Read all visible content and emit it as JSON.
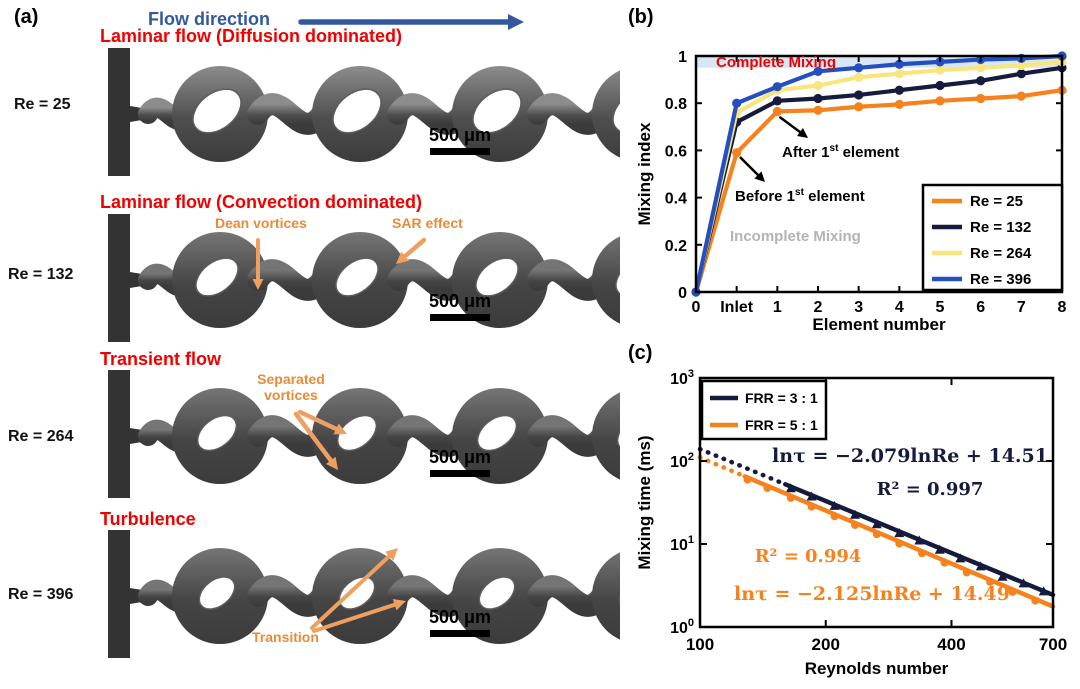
{
  "colors": {
    "red_title": "#f20000",
    "blue_flow": "#33589e",
    "orange_annot": "#ea8a38",
    "arrow_orange": "#eda05f",
    "series_orange": "#f6821e",
    "series_navy": "#141b3c",
    "series_yellow": "#f9e57e",
    "series_blue": "#2350be",
    "band_blue": "#d9e7f5",
    "gray_text": "#b3b3b3",
    "black": "#000000"
  },
  "figure": {
    "panel_a": {
      "label": "(a)",
      "flow_direction": "Flow direction",
      "scale_bar": "500 μm",
      "rows": [
        {
          "re": "Re = 25",
          "title": "Laminar flow (Diffusion dominated)",
          "annotations": []
        },
        {
          "re": "Re = 132",
          "title": "Laminar flow (Convection dominated)",
          "annotations": [
            {
              "text": "Dean vortices"
            },
            {
              "text": "SAR effect"
            }
          ]
        },
        {
          "re": "Re = 264",
          "title": "Transient flow",
          "annotations": [
            {
              "text": "Separated vortices"
            }
          ]
        },
        {
          "re": "Re = 396",
          "title": "Turbulence",
          "annotations": [
            {
              "text": "Transition"
            }
          ]
        }
      ]
    },
    "panel_b": {
      "label": "(b)"
    },
    "panel_c": {
      "label": "(c)"
    }
  },
  "chart_data": [
    {
      "type": "line",
      "panel": "b",
      "xlabel": "Element number",
      "ylabel": "Mixing index",
      "categories": [
        "0",
        "Inlet",
        "1",
        "2",
        "3",
        "4",
        "5",
        "6",
        "7",
        "8"
      ],
      "ylim": [
        0,
        1
      ],
      "ytick_labels": [
        "0",
        "0.2",
        "0.4",
        "0.6",
        "0.8",
        "1"
      ],
      "ytick_values": [
        0,
        0.2,
        0.4,
        0.6,
        0.8,
        1
      ],
      "band": {
        "from": 0.95,
        "to": 1.0
      },
      "series": [
        {
          "name": "Re =  25",
          "color_key": "series_orange",
          "values": [
            0,
            0.59,
            0.765,
            0.77,
            0.785,
            0.795,
            0.81,
            0.82,
            0.83,
            0.855
          ]
        },
        {
          "name": "Re = 132",
          "color_key": "series_navy",
          "values": [
            0,
            0.72,
            0.81,
            0.82,
            0.835,
            0.855,
            0.875,
            0.895,
            0.925,
            0.95
          ]
        },
        {
          "name": "Re = 264",
          "color_key": "series_yellow",
          "values": [
            0,
            0.76,
            0.855,
            0.875,
            0.91,
            0.925,
            0.94,
            0.95,
            0.96,
            0.975
          ]
        },
        {
          "name": "Re = 396",
          "color_key": "series_blue",
          "values": [
            0,
            0.8,
            0.87,
            0.935,
            0.95,
            0.965,
            0.975,
            0.985,
            0.99,
            1.0
          ]
        }
      ],
      "annotations": {
        "complete": "Complete Mixing",
        "incomplete": "Incomplete Mixing",
        "after": {
          "pre": "After 1",
          "sup": "st",
          "post": " element"
        },
        "before": {
          "pre": "Before 1",
          "sup": "st",
          "post": " element"
        }
      },
      "legend_position": "bottom-right"
    },
    {
      "type": "scatter",
      "panel": "c",
      "xlabel": "Reynolds number",
      "ylabel": "Mixing time (ms)",
      "xlim": [
        100,
        700
      ],
      "xticks": [
        100,
        200,
        400,
        700
      ],
      "ytick_exponents": [
        3,
        2,
        1,
        0
      ],
      "series": [
        {
          "name": "FRR = 3 : 1",
          "color_key": "series_navy",
          "marker": "triangle",
          "fit": {
            "slope": -2.079,
            "intercept": 14.51
          },
          "equation": "lnτ = −2.079lnRe + 14.51",
          "r2": "R² = 0.997",
          "dotted_from": 100,
          "solid_from": 160,
          "line_to": 700,
          "points_re": [
            165,
            185,
            210,
            235,
            265,
            300,
            335,
            375,
            420,
            470,
            530,
            595,
            665
          ],
          "points_tau": [
            49,
            39,
            30,
            23.5,
            18,
            14.1,
            11.5,
            8.9,
            7.0,
            5.6,
            4.2,
            3.5,
            2.8
          ]
        },
        {
          "name": "FRR = 5 : 1",
          "color_key": "series_orange",
          "marker": "circle",
          "fit": {
            "slope": -2.125,
            "intercept": 14.49
          },
          "equation": "lnτ = −2.125lnRe + 14.49",
          "r2": "R² = 0.994",
          "dotted_from": 100,
          "solid_from": 128,
          "line_to": 700,
          "points_re": [
            130,
            145,
            165,
            185,
            210,
            235,
            265,
            300,
            340,
            385,
            435,
            495,
            560,
            635
          ],
          "points_tau": [
            63,
            50,
            38,
            29.8,
            22.8,
            17.9,
            13.9,
            10.7,
            8.2,
            6.3,
            4.8,
            3.7,
            2.8,
            2.2
          ]
        }
      ],
      "legend_position": "top-left"
    }
  ]
}
